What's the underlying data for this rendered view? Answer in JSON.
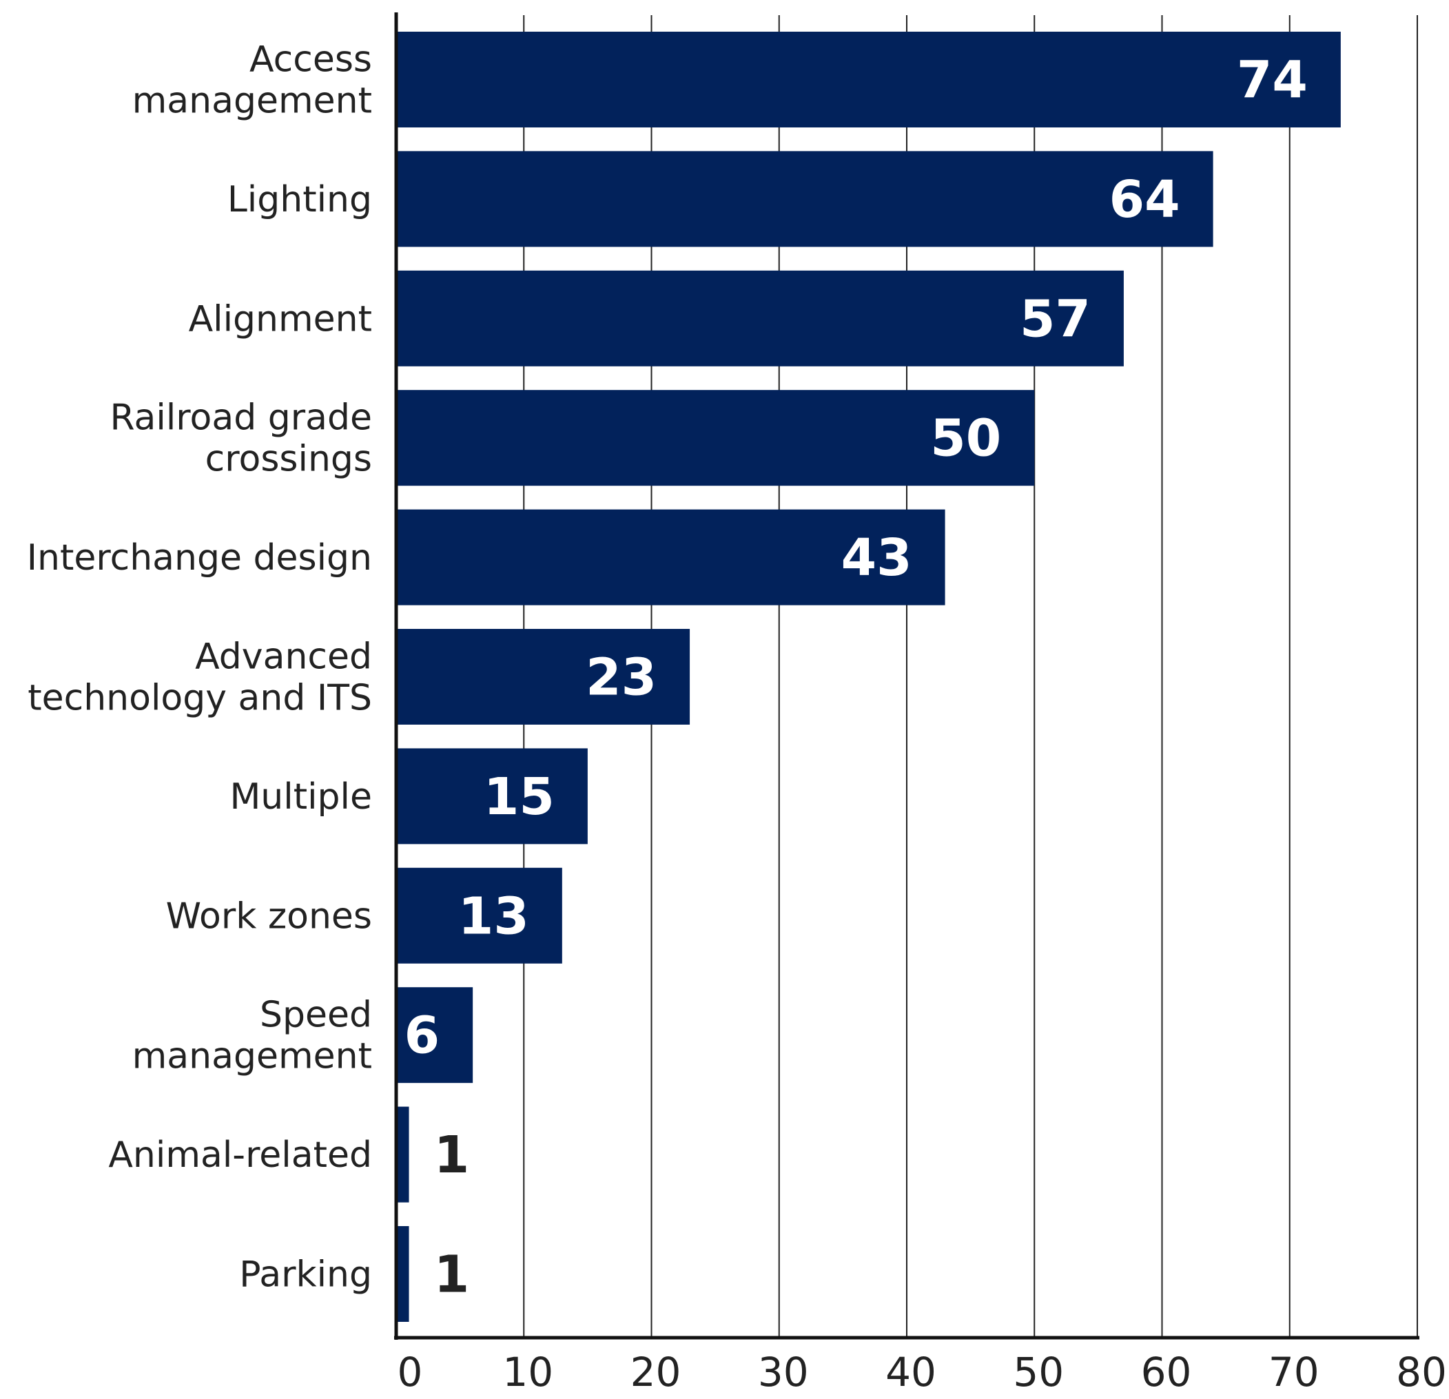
{
  "chart_data": {
    "type": "bar",
    "orientation": "horizontal",
    "title": "",
    "xlabel": "",
    "ylabel": "",
    "xlim": [
      0,
      80
    ],
    "ticks": [
      0,
      10,
      20,
      30,
      40,
      50,
      60,
      70,
      80
    ],
    "grid": true,
    "categories": [
      [
        "Access",
        "management"
      ],
      [
        "Lighting"
      ],
      [
        "Alignment"
      ],
      [
        "Railroad grade",
        "crossings"
      ],
      [
        "Interchange design"
      ],
      [
        "Advanced",
        "technology and ITS"
      ],
      [
        "Multiple"
      ],
      [
        "Work zones"
      ],
      [
        "Speed",
        "management"
      ],
      [
        "Animal-related"
      ],
      [
        "Parking"
      ]
    ],
    "values": [
      74,
      64,
      57,
      50,
      43,
      23,
      15,
      13,
      6,
      1,
      1
    ],
    "colors": {
      "bar": "#02225b",
      "value_inside": "#ffffff",
      "value_outside": "#222222",
      "grid": "#222222",
      "axis": "#111111"
    }
  }
}
